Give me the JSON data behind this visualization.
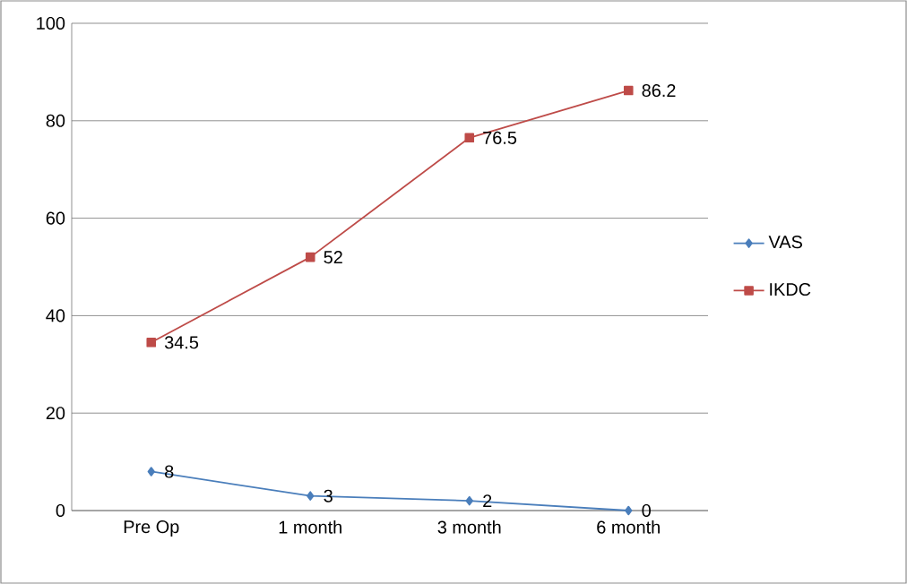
{
  "chart_data": {
    "type": "line",
    "categories": [
      "Pre Op",
      "1 month",
      "3 month",
      "6 month"
    ],
    "series": [
      {
        "name": "VAS",
        "color": "#4a7ebb",
        "values": [
          8,
          3,
          2,
          0
        ],
        "marker": "diamond"
      },
      {
        "name": "IKDC",
        "color": "#be4b48",
        "values": [
          34.5,
          52,
          76.5,
          86.2
        ],
        "marker": "square"
      }
    ],
    "ylim": [
      0,
      100
    ],
    "yticks": [
      0,
      20,
      40,
      60,
      80,
      100
    ],
    "grid": "y",
    "legend": "right",
    "data_labels": true,
    "line_style": "solid"
  }
}
